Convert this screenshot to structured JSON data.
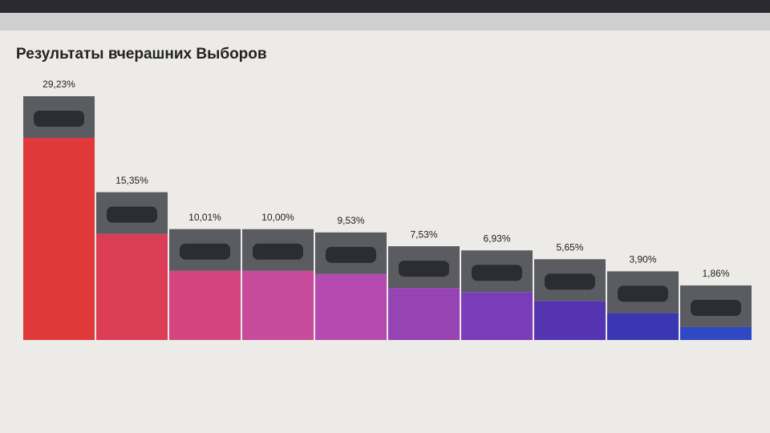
{
  "chart_data": {
    "type": "bar",
    "title": "Результаты вчерашних Выборов",
    "values": [
      29.23,
      15.35,
      10.01,
      10.0,
      9.53,
      7.53,
      6.93,
      5.65,
      3.9,
      1.86
    ],
    "value_labels": [
      "29,23%",
      "15,35%",
      "10,01%",
      "10,00%",
      "9,53%",
      "7,53%",
      "6,93%",
      "5,65%",
      "3,90%",
      "1,86%"
    ],
    "colors": [
      "#e0393a",
      "#da3d55",
      "#d4447e",
      "#c84a9a",
      "#b64ab0",
      "#9644b4",
      "#7a3cb8",
      "#5434b0",
      "#3b36b2",
      "#2f48c4"
    ]
  }
}
